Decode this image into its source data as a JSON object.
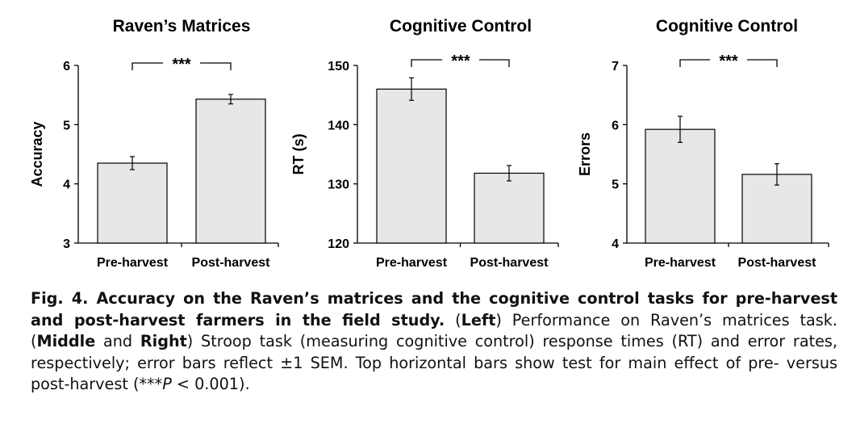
{
  "chart_data": [
    {
      "type": "bar",
      "title": "Raven’s Matrices",
      "ylabel": "Accuracy",
      "xlabel": "",
      "categories": [
        "Pre-harvest",
        "Post-harvest"
      ],
      "values": [
        4.35,
        5.43
      ],
      "errors": [
        0.11,
        0.08
      ],
      "ylim": [
        3,
        6
      ],
      "yticks": [
        "3",
        "4",
        "5",
        "6"
      ],
      "significance": "***",
      "bar_color": "#e6e7e8"
    },
    {
      "type": "bar",
      "title": "Cognitive Control",
      "ylabel": "RT (s)",
      "xlabel": "",
      "categories": [
        "Pre-harvest",
        "Post-harvest"
      ],
      "values": [
        146.0,
        131.8
      ],
      "errors": [
        1.9,
        1.3
      ],
      "ylim": [
        120,
        150
      ],
      "yticks": [
        "120",
        "130",
        "140",
        "150"
      ],
      "significance": "***",
      "bar_color": "#e6e7e8"
    },
    {
      "type": "bar",
      "title": "Cognitive Control",
      "ylabel": "Errors",
      "xlabel": "",
      "categories": [
        "Pre-harvest",
        "Post-harvest"
      ],
      "values": [
        5.92,
        5.16
      ],
      "errors": [
        0.22,
        0.18
      ],
      "ylim": [
        4,
        7
      ],
      "yticks": [
        "4",
        "5",
        "6",
        "7"
      ],
      "significance": "***",
      "bar_color": "#e6e7e8"
    }
  ],
  "caption": {
    "fig_label": "Fig. 4.",
    "bold_title": " Accuracy on the Raven’s matrices and the cognitive control tasks for pre-harvest and post-harvest farmers in the field study.",
    "part1": " (",
    "left": "Left",
    "part2": ") Performance on Raven’s matrices task. (",
    "middle": "Middle",
    "part3": " and ",
    "right": "Right",
    "part4": ") Stroop task (measuring cognitive control) response times (RT) and error rates, respectively; error bars reflect ±1 SEM. Top horizontal bars show test for main effect of pre- versus post-harvest (***",
    "p": "P",
    "part5": " < 0.001)."
  }
}
